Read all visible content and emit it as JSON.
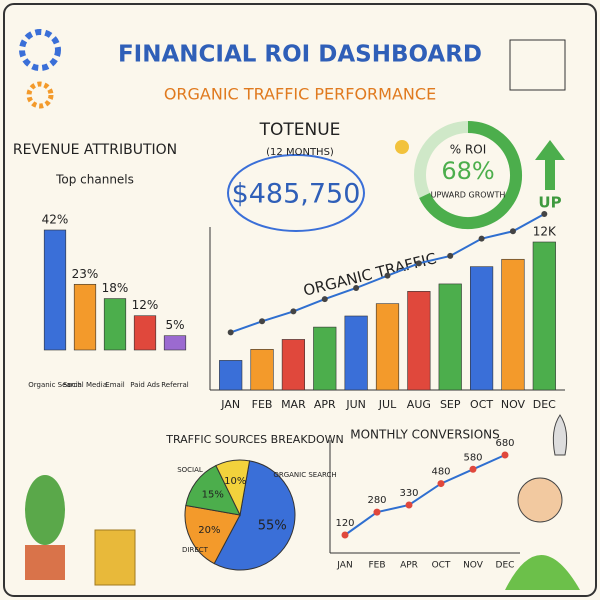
{
  "header": {
    "title": "FINANCIAL ROI DASHBOARD",
    "subtitle": "ORGANIC TRAFFIC PERFORMANCE"
  },
  "kpis": {
    "revenue": {
      "label": "TOTENUE",
      "period": "(12 MONTHS)",
      "value": "$485,750"
    },
    "up_label": "UP"
  },
  "chart_data": [
    {
      "type": "bar",
      "title": "REVENUE ATTRIBUTION",
      "subtitle": "Top channels",
      "categories": [
        "Organic Search",
        "Social Media",
        "Email",
        "Paid Ads",
        "Referral"
      ],
      "values": [
        42,
        23,
        18,
        12,
        5
      ],
      "value_labels": [
        "42%",
        "23%",
        "18%",
        "12%",
        "5%"
      ],
      "colors": [
        "#3a6fd8",
        "#f39a2b",
        "#4cae4c",
        "#e0483c",
        "#9b6ad0"
      ]
    },
    {
      "type": "bar",
      "title": "ORGANIC TRAFFIC",
      "categories": [
        "JAN",
        "FEB",
        "MAR",
        "APR",
        "JUN",
        "JUL",
        "AUG",
        "SEP",
        "OCT",
        "NOV",
        "DEC"
      ],
      "values": [
        2400,
        3300,
        4100,
        5100,
        6000,
        7000,
        8000,
        8600,
        10000,
        10600,
        12000
      ],
      "value_labels": [
        null,
        null,
        null,
        null,
        null,
        null,
        null,
        null,
        null,
        null,
        "12K"
      ],
      "colors": [
        "#3a6fd8",
        "#f39a2b",
        "#e0483c",
        "#4cae4c",
        "#3a6fd8",
        "#f39a2b",
        "#e0483c",
        "#4cae4c",
        "#3a6fd8",
        "#f39a2b",
        "#4cae4c"
      ],
      "trend_color": "#2f6fd0"
    },
    {
      "type": "gauge",
      "title": "% ROI",
      "values": [
        68
      ],
      "value_labels": [
        "68%"
      ],
      "annotation": "UPWARD GROWTH",
      "color": "#4cae4c"
    },
    {
      "type": "pie",
      "title": "TRAFFIC SOURCES BREAKDOWN",
      "categories": [
        "ORGANIC SEARCH",
        "DIRECT",
        "SOCIAL",
        null
      ],
      "values": [
        55,
        20,
        15,
        10
      ],
      "value_labels": [
        "55%",
        "20%",
        "15%",
        "10%"
      ],
      "colors": [
        "#3a6fd8",
        "#f39a2b",
        "#4cae4c",
        "#f2d23c"
      ]
    },
    {
      "type": "line",
      "title": "MONTHLY CONVERSIONS",
      "categories": [
        "JAN",
        "FEB",
        "APR",
        "OCT",
        "NOV",
        "DEC"
      ],
      "values": [
        120,
        280,
        330,
        480,
        580,
        680
      ],
      "color": "#2f6fd0"
    }
  ]
}
